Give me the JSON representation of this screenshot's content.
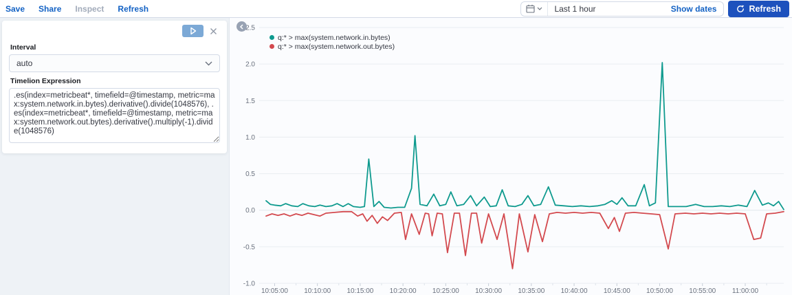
{
  "toolbar": {
    "save": "Save",
    "share": "Share",
    "inspect": "Inspect",
    "refresh": "Refresh"
  },
  "timepicker": {
    "value": "Last 1 hour",
    "show_dates": "Show dates",
    "refresh_label": "Refresh"
  },
  "editor": {
    "interval_label": "Interval",
    "interval_value": "auto",
    "expression_label": "Timelion Expression",
    "expression_value": ".es(index=metricbeat*, timefield=@timestamp, metric=max:system.network.in.bytes).derivative().divide(1048576), .es(index=metricbeat*, timefield=@timestamp, metric=max:system.network.out.bytes).derivative().multiply(-1).divide(1048576)"
  },
  "colors": {
    "link_blue": "#1261c4",
    "refresh_button": "#1d51bd",
    "series_in": "#0e9a8e",
    "series_out": "#d3494e",
    "grid": "#e9edf1",
    "tick_text": "#69707d"
  },
  "chart_data": {
    "type": "line",
    "title": "",
    "xlabel": "",
    "ylabel": "",
    "grid": true,
    "legend_position": "top-left",
    "ylim": [
      -1.0,
      2.5
    ],
    "y_ticks": [
      "2.5",
      "2.0",
      "1.5",
      "1.0",
      "0.5",
      "0.0",
      "-0.5",
      "-1.0"
    ],
    "x_ticks": [
      "10:05:00",
      "10:10:00",
      "10:15:00",
      "10:20:00",
      "10:25:00",
      "10:30:00",
      "10:35:00",
      "10:40:00",
      "10:45:00",
      "10:50:00",
      "10:55:00",
      "11:00:00"
    ],
    "x_tick_minutes": [
      5,
      10,
      15,
      20,
      25,
      30,
      35,
      40,
      45,
      50,
      55,
      60
    ],
    "x_range_minutes": [
      4,
      64.5
    ],
    "series": [
      {
        "label": "q:* > max(system.network.in.bytes)",
        "color": "#0e9a8e",
        "points": [
          [
            4,
            0.13
          ],
          [
            4.5,
            0.08
          ],
          [
            5,
            0.07
          ],
          [
            5.7,
            0.06
          ],
          [
            6.3,
            0.09
          ],
          [
            7,
            0.06
          ],
          [
            7.7,
            0.05
          ],
          [
            8.3,
            0.09
          ],
          [
            9,
            0.06
          ],
          [
            9.7,
            0.05
          ],
          [
            10.3,
            0.07
          ],
          [
            11,
            0.05
          ],
          [
            11.7,
            0.06
          ],
          [
            12.3,
            0.09
          ],
          [
            13,
            0.05
          ],
          [
            13.6,
            0.09
          ],
          [
            14.2,
            0.05
          ],
          [
            15,
            0.04
          ],
          [
            15.5,
            0.05
          ],
          [
            16,
            0.7
          ],
          [
            16.6,
            0.05
          ],
          [
            17.2,
            0.12
          ],
          [
            17.8,
            0.04
          ],
          [
            18.6,
            0.03
          ],
          [
            19.4,
            0.04
          ],
          [
            20.2,
            0.04
          ],
          [
            21,
            0.3
          ],
          [
            21.4,
            1.02
          ],
          [
            22,
            0.08
          ],
          [
            22.8,
            0.06
          ],
          [
            23.6,
            0.22
          ],
          [
            24.3,
            0.06
          ],
          [
            25,
            0.08
          ],
          [
            25.6,
            0.25
          ],
          [
            26.3,
            0.06
          ],
          [
            27.1,
            0.08
          ],
          [
            27.9,
            0.2
          ],
          [
            28.6,
            0.06
          ],
          [
            29.5,
            0.18
          ],
          [
            30.2,
            0.05
          ],
          [
            30.9,
            0.06
          ],
          [
            31.6,
            0.28
          ],
          [
            32.3,
            0.06
          ],
          [
            33.1,
            0.05
          ],
          [
            33.9,
            0.08
          ],
          [
            34.6,
            0.2
          ],
          [
            35.3,
            0.06
          ],
          [
            36.1,
            0.08
          ],
          [
            37,
            0.32
          ],
          [
            37.8,
            0.07
          ],
          [
            38.8,
            0.06
          ],
          [
            39.8,
            0.05
          ],
          [
            40.8,
            0.06
          ],
          [
            41.8,
            0.05
          ],
          [
            42.8,
            0.06
          ],
          [
            43.6,
            0.08
          ],
          [
            44.4,
            0.13
          ],
          [
            45,
            0.08
          ],
          [
            45.6,
            0.17
          ],
          [
            46.3,
            0.06
          ],
          [
            47.2,
            0.06
          ],
          [
            48.2,
            0.35
          ],
          [
            48.8,
            0.06
          ],
          [
            49.5,
            0.1
          ],
          [
            50.3,
            2.02
          ],
          [
            51,
            0.05
          ],
          [
            52,
            0.05
          ],
          [
            53.1,
            0.05
          ],
          [
            54.2,
            0.08
          ],
          [
            55.2,
            0.05
          ],
          [
            56.2,
            0.05
          ],
          [
            57.2,
            0.06
          ],
          [
            58.2,
            0.05
          ],
          [
            59.2,
            0.07
          ],
          [
            60.2,
            0.05
          ],
          [
            61.1,
            0.27
          ],
          [
            62,
            0.07
          ],
          [
            62.7,
            0.1
          ],
          [
            63.3,
            0.06
          ],
          [
            63.9,
            0.12
          ],
          [
            64.5,
            0.01
          ]
        ]
      },
      {
        "label": "q:* > max(system.network.out.bytes)",
        "color": "#d3494e",
        "points": [
          [
            4,
            -0.08
          ],
          [
            4.7,
            -0.05
          ],
          [
            5.4,
            -0.07
          ],
          [
            6.1,
            -0.05
          ],
          [
            6.8,
            -0.08
          ],
          [
            7.5,
            -0.05
          ],
          [
            8.2,
            -0.07
          ],
          [
            8.9,
            -0.04
          ],
          [
            9.6,
            -0.06
          ],
          [
            10.3,
            -0.08
          ],
          [
            11,
            -0.04
          ],
          [
            12,
            -0.03
          ],
          [
            13,
            -0.02
          ],
          [
            14,
            -0.02
          ],
          [
            14.7,
            -0.08
          ],
          [
            15.3,
            -0.05
          ],
          [
            15.8,
            -0.15
          ],
          [
            16.4,
            -0.07
          ],
          [
            17,
            -0.18
          ],
          [
            17.6,
            -0.09
          ],
          [
            18.2,
            -0.14
          ],
          [
            19,
            -0.04
          ],
          [
            19.8,
            -0.03
          ],
          [
            20.3,
            -0.4
          ],
          [
            21,
            -0.05
          ],
          [
            21.9,
            -0.33
          ],
          [
            22.6,
            -0.04
          ],
          [
            23,
            -0.05
          ],
          [
            23.4,
            -0.35
          ],
          [
            24,
            -0.04
          ],
          [
            24.6,
            -0.05
          ],
          [
            25.2,
            -0.58
          ],
          [
            26,
            -0.04
          ],
          [
            26.6,
            -0.04
          ],
          [
            27.3,
            -0.62
          ],
          [
            28,
            -0.04
          ],
          [
            28.6,
            -0.04
          ],
          [
            29.2,
            -0.45
          ],
          [
            30,
            -0.05
          ],
          [
            31,
            -0.4
          ],
          [
            31.8,
            -0.05
          ],
          [
            32.8,
            -0.8
          ],
          [
            33.6,
            -0.05
          ],
          [
            34.6,
            -0.57
          ],
          [
            35.4,
            -0.06
          ],
          [
            36.3,
            -0.43
          ],
          [
            37.1,
            -0.05
          ],
          [
            38,
            -0.03
          ],
          [
            39,
            -0.04
          ],
          [
            40,
            -0.03
          ],
          [
            41,
            -0.04
          ],
          [
            42,
            -0.03
          ],
          [
            43,
            -0.04
          ],
          [
            44,
            -0.25
          ],
          [
            44.7,
            -0.1
          ],
          [
            45.3,
            -0.29
          ],
          [
            46,
            -0.04
          ],
          [
            47,
            -0.03
          ],
          [
            48,
            -0.04
          ],
          [
            49,
            -0.05
          ],
          [
            50,
            -0.06
          ],
          [
            51,
            -0.53
          ],
          [
            51.8,
            -0.05
          ],
          [
            53,
            -0.04
          ],
          [
            54,
            -0.05
          ],
          [
            55,
            -0.04
          ],
          [
            56,
            -0.05
          ],
          [
            57,
            -0.04
          ],
          [
            58,
            -0.05
          ],
          [
            59,
            -0.04
          ],
          [
            60,
            -0.05
          ],
          [
            61,
            -0.4
          ],
          [
            61.8,
            -0.38
          ],
          [
            62.5,
            -0.05
          ],
          [
            63.5,
            -0.04
          ],
          [
            64.5,
            -0.02
          ]
        ]
      }
    ]
  }
}
